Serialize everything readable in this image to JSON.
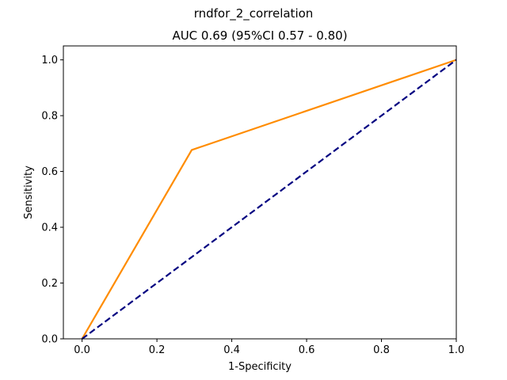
{
  "chart_data": {
    "type": "line",
    "suptitle": "rndfor_2_correlation",
    "title": "AUC 0.69 (95%CI 0.57 - 0.80)",
    "xlabel": "1-Specificity",
    "ylabel": "Sensitivity",
    "xlim": [
      -0.05,
      1.0
    ],
    "ylim": [
      0.0,
      1.05
    ],
    "xticks": [
      0.0,
      0.2,
      0.4,
      0.6,
      0.8,
      1.0
    ],
    "xtick_labels": [
      "0.0",
      "0.2",
      "0.4",
      "0.6",
      "0.8",
      "1.0"
    ],
    "yticks": [
      0.0,
      0.2,
      0.4,
      0.6,
      0.8,
      1.0
    ],
    "ytick_labels": [
      "0.0",
      "0.2",
      "0.4",
      "0.6",
      "0.8",
      "1.0"
    ],
    "grid": false,
    "legend": "none",
    "series": [
      {
        "x": [
          0.0,
          0.293,
          1.0
        ],
        "y": [
          0.0,
          0.677,
          1.0
        ],
        "color": "#ff8c00",
        "style": "solid"
      },
      {
        "x": [
          0.0,
          1.0
        ],
        "y": [
          0.0,
          1.0
        ],
        "color": "#000080",
        "style": "dashed"
      }
    ]
  }
}
